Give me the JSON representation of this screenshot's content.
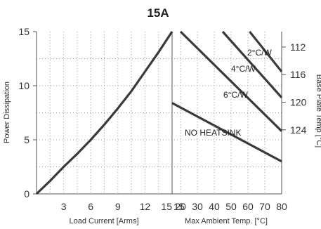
{
  "chart_data": {
    "type": "line",
    "title": "15A",
    "left_panel": {
      "xlabel": "Load Current [Arms]",
      "ylabel": "Power Dissipation",
      "xlim": [
        0,
        15
      ],
      "ylim": [
        0,
        15
      ],
      "xticks": [
        "3",
        "6",
        "9",
        "12",
        "15"
      ],
      "yticks": [
        "0",
        "5",
        "10",
        "15"
      ],
      "grid": true,
      "series": [
        {
          "x": [
            0,
            1.5,
            3,
            4.5,
            6,
            7.5,
            9,
            10.5,
            12,
            13.5,
            15
          ],
          "y": [
            0,
            1.2,
            2.5,
            3.7,
            5.0,
            6.4,
            7.9,
            9.5,
            11.3,
            13.1,
            15.0
          ]
        }
      ]
    },
    "right_panel": {
      "xlabel": "Max Ambient Temp. [°C]",
      "ylabel": "Base Plate Temp [°C]",
      "xlim": [
        15,
        80
      ],
      "xticks": [
        "15",
        "20",
        "30",
        "40",
        "50",
        "60",
        "70",
        "80"
      ],
      "y2ticks": [
        "112",
        "116",
        "120",
        "124"
      ],
      "grid": true,
      "series": [
        {
          "label": "2°C/W",
          "x": [
            61,
            80
          ],
          "y": [
            15.0,
            11.3
          ]
        },
        {
          "label": "4°C/W",
          "x": [
            45,
            80
          ],
          "y": [
            15.0,
            8.9
          ]
        },
        {
          "label": "6°C/W",
          "x": [
            20,
            80
          ],
          "y": [
            15.0,
            5.8
          ]
        },
        {
          "label": "NO HEATSINK",
          "x": [
            15,
            80
          ],
          "y": [
            8.4,
            3.0
          ]
        }
      ]
    }
  }
}
